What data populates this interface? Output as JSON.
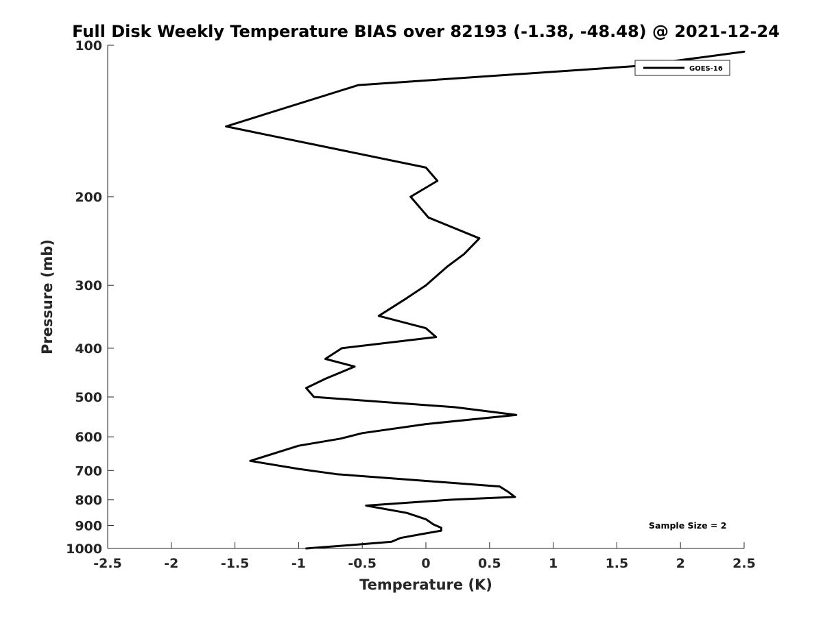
{
  "chart_data": {
    "type": "line",
    "title": "Full Disk Weekly Temperature BIAS over 82193 (-1.38, -48.48) @ 2021-12-24",
    "xlabel": "Temperature (K)",
    "ylabel": "Pressure (mb)",
    "xlim": [
      -2.5,
      2.5
    ],
    "ylim": [
      1000,
      100
    ],
    "y_scale": "log",
    "x_ticks": [
      -2.5,
      -2,
      -1.5,
      -1,
      -0.5,
      0,
      0.5,
      1,
      1.5,
      2,
      2.5
    ],
    "x_tick_labels": [
      "-2.5",
      "-2",
      "-1.5",
      "-1",
      "-0.5",
      "0",
      "0.5",
      "1",
      "1.5",
      "2",
      "2.5"
    ],
    "y_ticks": [
      100,
      200,
      300,
      400,
      500,
      600,
      700,
      800,
      900,
      1000
    ],
    "y_tick_labels": [
      "100",
      "200",
      "300",
      "400",
      "500",
      "600",
      "700",
      "800",
      "900",
      "1000"
    ],
    "legend": {
      "position": "top-right",
      "entries": [
        "GOES-16"
      ]
    },
    "annotation": "Sample Size = 2",
    "series": [
      {
        "name": "GOES-16",
        "color": "#000000",
        "points": [
          [
            2.5,
            103
          ],
          [
            1.65,
            110
          ],
          [
            -0.53,
            120
          ],
          [
            -1.57,
            145
          ],
          [
            0.0,
            175
          ],
          [
            0.09,
            186
          ],
          [
            -0.12,
            200
          ],
          [
            0.02,
            220
          ],
          [
            0.42,
            242
          ],
          [
            0.3,
            260
          ],
          [
            0.17,
            275
          ],
          [
            0.0,
            300
          ],
          [
            -0.15,
            318
          ],
          [
            -0.37,
            345
          ],
          [
            0.0,
            365
          ],
          [
            0.08,
            380
          ],
          [
            -0.66,
            400
          ],
          [
            -0.79,
            420
          ],
          [
            -0.56,
            435
          ],
          [
            -0.79,
            460
          ],
          [
            -0.94,
            480
          ],
          [
            -0.88,
            500
          ],
          [
            0.23,
            524
          ],
          [
            0.71,
            543
          ],
          [
            0.0,
            566
          ],
          [
            -0.5,
            590
          ],
          [
            -0.67,
            605
          ],
          [
            -1.0,
            625
          ],
          [
            -1.38,
            670
          ],
          [
            -1.0,
            695
          ],
          [
            -0.7,
            712
          ],
          [
            0.58,
            753
          ],
          [
            0.65,
            773
          ],
          [
            0.7,
            790
          ],
          [
            0.2,
            800
          ],
          [
            -0.47,
            822
          ],
          [
            -0.15,
            850
          ],
          [
            0.0,
            875
          ],
          [
            0.06,
            896
          ],
          [
            0.12,
            910
          ],
          [
            0.12,
            922
          ],
          [
            -0.02,
            935
          ],
          [
            -0.2,
            953
          ],
          [
            -0.27,
            970
          ],
          [
            -0.55,
            983
          ],
          [
            -0.94,
            1000
          ]
        ]
      }
    ]
  }
}
